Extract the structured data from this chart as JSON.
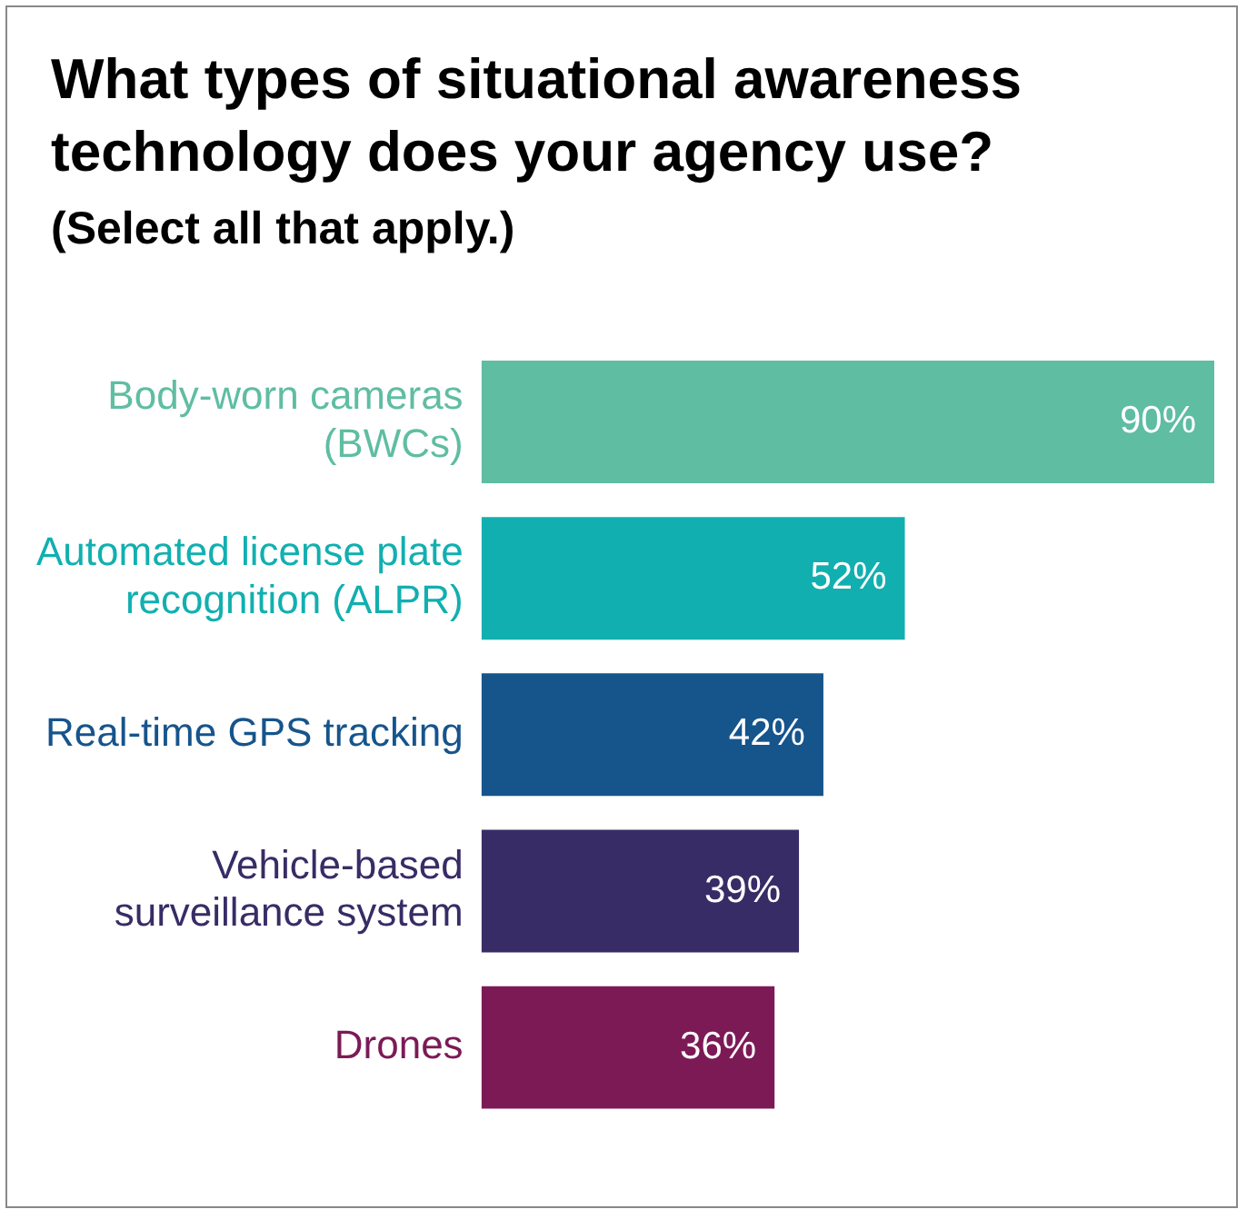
{
  "chart_data": {
    "type": "bar",
    "orientation": "horizontal",
    "title": "What types of situational awareness technology does your agency use?",
    "subtitle": "(Select all that apply.)",
    "categories": [
      "Body-worn cameras (BWCs)",
      "Automated license plate recognition (ALPR)",
      "Real-time GPS tracking",
      "Vehicle-based surveillance system",
      "Drones"
    ],
    "values": [
      90,
      52,
      42,
      39,
      36
    ],
    "colors": [
      "#5fbda2",
      "#12afb0",
      "#16548c",
      "#382c66",
      "#7c1a56"
    ],
    "value_labels": [
      "90%",
      "52%",
      "42%",
      "39%",
      "36%"
    ],
    "legend": false,
    "tick_labels": "y"
  }
}
